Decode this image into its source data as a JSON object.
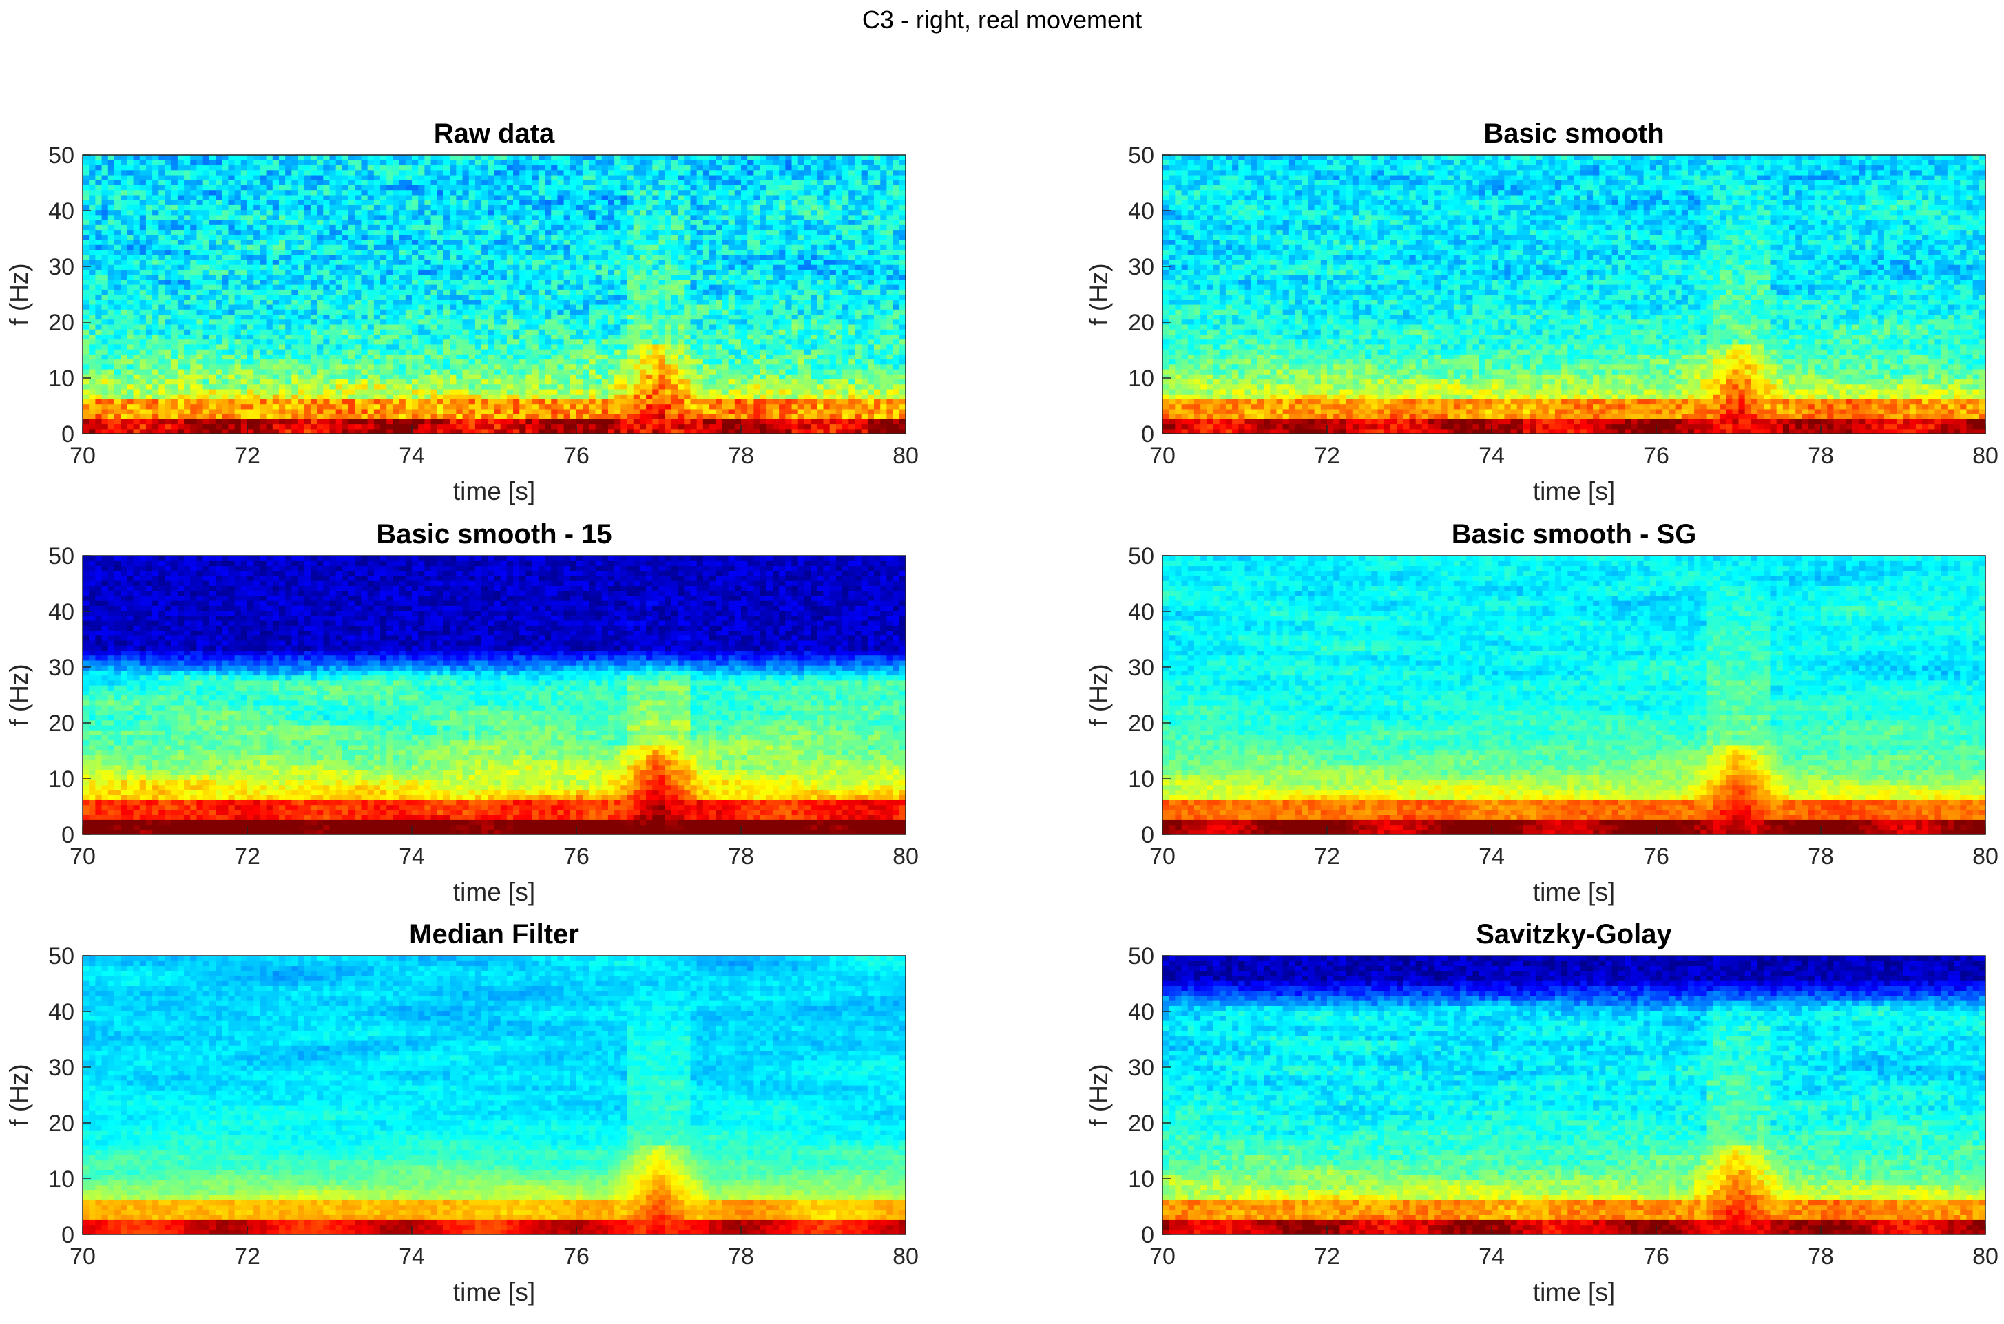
{
  "figure": {
    "title": "C3 - right, real movement"
  },
  "chart_data": [
    {
      "type": "heatmap",
      "title": "Raw data",
      "xlabel": "time [s]",
      "ylabel": "f (Hz)",
      "xlim": [
        70,
        80
      ],
      "ylim": [
        0,
        50
      ],
      "xticks": [
        "70",
        "72",
        "74",
        "76",
        "78",
        "80"
      ],
      "yticks": [
        "0",
        "10",
        "20",
        "30",
        "40",
        "50"
      ],
      "colormap": "jet",
      "smoothing": "none",
      "features": {
        "low_freq_power_band_hz": [
          0,
          3
        ],
        "burst_time_s": 77,
        "burst_freq_hz": [
          0,
          15
        ],
        "high_freq_activity": "moderate"
      }
    },
    {
      "type": "heatmap",
      "title": "Basic smooth",
      "xlabel": "time [s]",
      "ylabel": "f (Hz)",
      "xlim": [
        70,
        80
      ],
      "ylim": [
        0,
        50
      ],
      "xticks": [
        "70",
        "72",
        "74",
        "76",
        "78",
        "80"
      ],
      "yticks": [
        "0",
        "10",
        "20",
        "30",
        "40",
        "50"
      ],
      "colormap": "jet",
      "smoothing": "basic",
      "features": {
        "low_freq_power_band_hz": [
          0,
          3
        ],
        "burst_time_s": 77,
        "burst_freq_hz": [
          0,
          15
        ],
        "high_freq_activity": "moderate"
      }
    },
    {
      "type": "heatmap",
      "title": "Basic smooth - 15",
      "xlabel": "time [s]",
      "ylabel": "f (Hz)",
      "xlim": [
        70,
        80
      ],
      "ylim": [
        0,
        50
      ],
      "xticks": [
        "70",
        "72",
        "74",
        "76",
        "78",
        "80"
      ],
      "yticks": [
        "0",
        "10",
        "20",
        "30",
        "40",
        "50"
      ],
      "colormap": "jet",
      "smoothing": "basic-15",
      "features": {
        "low_freq_power_band_hz": [
          0,
          3
        ],
        "burst_time_s": 77,
        "burst_freq_hz": [
          0,
          15
        ],
        "high_freq_activity": "suppressed above 28 Hz"
      }
    },
    {
      "type": "heatmap",
      "title": "Basic smooth - SG",
      "xlabel": "time [s]",
      "ylabel": "f (Hz)",
      "xlim": [
        70,
        80
      ],
      "ylim": [
        0,
        50
      ],
      "xticks": [
        "70",
        "72",
        "74",
        "76",
        "78",
        "80"
      ],
      "yticks": [
        "0",
        "10",
        "20",
        "30",
        "40",
        "50"
      ],
      "colormap": "jet",
      "smoothing": "basic-sg",
      "features": {
        "low_freq_power_band_hz": [
          0,
          3
        ],
        "burst_time_s": 77,
        "burst_freq_hz": [
          0,
          15
        ],
        "high_freq_activity": "high"
      }
    },
    {
      "type": "heatmap",
      "title": "Median Filter",
      "xlabel": "time [s]",
      "ylabel": "f (Hz)",
      "xlim": [
        70,
        80
      ],
      "ylim": [
        0,
        50
      ],
      "xticks": [
        "70",
        "72",
        "74",
        "76",
        "78",
        "80"
      ],
      "yticks": [
        "0",
        "10",
        "20",
        "30",
        "40",
        "50"
      ],
      "colormap": "jet",
      "smoothing": "median",
      "features": {
        "low_freq_power_band_hz": [
          0,
          3
        ],
        "burst_time_s": 77,
        "burst_freq_hz": [
          0,
          15
        ],
        "high_freq_activity": "moderate"
      }
    },
    {
      "type": "heatmap",
      "title": "Savitzky-Golay",
      "xlabel": "time [s]",
      "ylabel": "f (Hz)",
      "xlim": [
        70,
        80
      ],
      "ylim": [
        0,
        50
      ],
      "xticks": [
        "70",
        "72",
        "74",
        "76",
        "78",
        "80"
      ],
      "yticks": [
        "0",
        "10",
        "20",
        "30",
        "40",
        "50"
      ],
      "colormap": "jet",
      "smoothing": "savitzky-golay",
      "features": {
        "low_freq_power_band_hz": [
          0,
          3
        ],
        "burst_time_s": 77,
        "burst_freq_hz": [
          0,
          15
        ],
        "high_freq_activity": "reduced above 40 Hz"
      }
    }
  ]
}
